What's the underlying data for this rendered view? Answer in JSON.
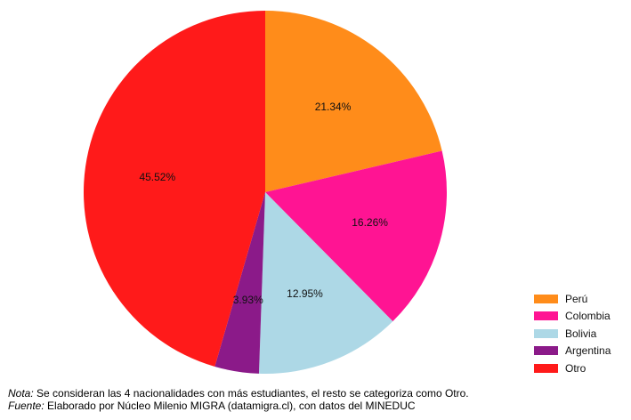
{
  "chart_data": {
    "type": "pie",
    "title": "",
    "categories": [
      "Perú",
      "Colombia",
      "Bolivia",
      "Argentina",
      "Otro"
    ],
    "values": [
      21.34,
      16.26,
      12.95,
      3.93,
      45.52
    ],
    "value_labels": [
      "21.34%",
      "16.26%",
      "12.95%",
      "3.93%",
      "45.52%"
    ],
    "colors": [
      "#ff8c1a",
      "#ff1493",
      "#add8e6",
      "#8b1a89",
      "#ff1a1a"
    ],
    "start_angle": "12 o'clock",
    "direction": "clockwise",
    "legend_position": "bottom-right"
  },
  "legend": {
    "items": [
      {
        "label": "Perú",
        "color": "#ff8c1a"
      },
      {
        "label": "Colombia",
        "color": "#ff1493"
      },
      {
        "label": "Bolivia",
        "color": "#add8e6"
      },
      {
        "label": "Argentina",
        "color": "#8b1a89"
      },
      {
        "label": "Otro",
        "color": "#ff1a1a"
      }
    ]
  },
  "notes": {
    "nota_label": "Nota:",
    "nota_text": " Se consideran las 4 nacionalidades con más estudiantes, el resto se categoriza como Otro.",
    "fuente_label": "Fuente:",
    "fuente_text": " Elaborado por Núcleo Milenio MIGRA (datamigra.cl), con datos del MINEDUC"
  }
}
